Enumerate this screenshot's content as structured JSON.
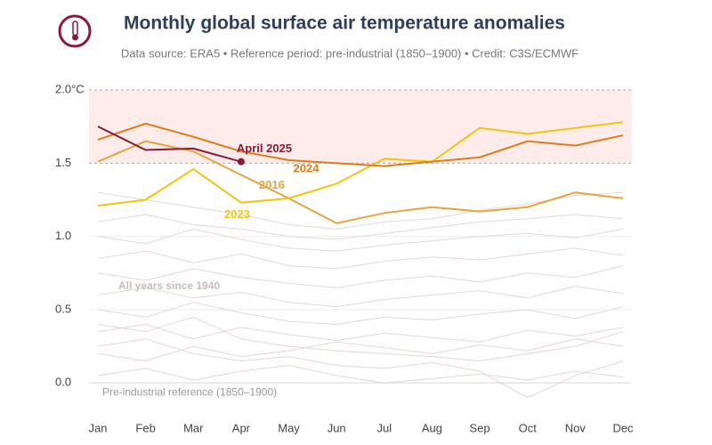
{
  "chart_data": {
    "type": "line",
    "title": "Monthly global surface air temperature anomalies",
    "subtitle": "Data source: ERA5 • Reference period: pre-industrial (1850–1900) • Credit: C3S/ECMWF",
    "categories": [
      "Jan",
      "Feb",
      "Mar",
      "Apr",
      "May",
      "Jun",
      "Jul",
      "Aug",
      "Sep",
      "Oct",
      "Nov",
      "Dec"
    ],
    "ylim": [
      -0.15,
      2.0
    ],
    "yticks": [
      {
        "value": 0.0,
        "label": "0.0"
      },
      0.5,
      {
        "value": 1.0,
        "label": "1.0"
      },
      1.5,
      {
        "value": 2.0,
        "label": "2.0°C"
      }
    ],
    "grid": true,
    "band": [
      1.5,
      2.0
    ],
    "band_color": "#fdecea",
    "reference": {
      "value": 0,
      "label": "Pre-industrial reference (1850–1900)"
    },
    "background": {
      "label": "All years since 1940",
      "color": "#e4d6d3",
      "series": [
        [
          0.05,
          0.1,
          0.02,
          0.08,
          0.12,
          0.05,
          0.0,
          0.03,
          0.06,
          0.02,
          0.08,
          0.04
        ],
        [
          0.2,
          0.15,
          0.25,
          0.18,
          0.22,
          0.28,
          0.24,
          0.2,
          0.26,
          0.22,
          0.3,
          0.25
        ],
        [
          0.35,
          0.4,
          0.3,
          0.38,
          0.33,
          0.29,
          0.34,
          0.31,
          0.28,
          0.36,
          0.32,
          0.38
        ],
        [
          0.5,
          0.45,
          0.55,
          0.48,
          0.42,
          0.4,
          0.45,
          0.43,
          0.47,
          0.5,
          0.44,
          0.52
        ],
        [
          0.6,
          0.65,
          0.58,
          0.62,
          0.55,
          0.52,
          0.57,
          0.6,
          0.63,
          0.58,
          0.66,
          0.61
        ],
        [
          0.75,
          0.7,
          0.78,
          0.72,
          0.68,
          0.65,
          0.7,
          0.73,
          0.69,
          0.75,
          0.72,
          0.8
        ],
        [
          0.85,
          0.9,
          0.82,
          0.88,
          0.8,
          0.78,
          0.83,
          0.86,
          0.84,
          0.88,
          0.92,
          0.87
        ],
        [
          1.0,
          0.95,
          1.05,
          0.98,
          0.92,
          0.9,
          0.94,
          0.97,
          1.0,
          1.02,
          0.99,
          1.05
        ],
        [
          1.1,
          1.15,
          1.08,
          1.05,
          1.0,
          0.98,
          1.02,
          1.06,
          1.1,
          1.12,
          1.15,
          1.12
        ],
        [
          1.3,
          1.25,
          1.2,
          1.15,
          1.08,
          1.05,
          1.1,
          1.12,
          1.18,
          1.22,
          1.28,
          1.3
        ],
        [
          0.25,
          0.3,
          0.2,
          0.15,
          0.18,
          0.12,
          0.1,
          0.14,
          0.08,
          -0.1,
          0.05,
          0.15
        ],
        [
          0.4,
          0.35,
          0.45,
          0.3,
          0.25,
          0.22,
          0.2,
          0.18,
          0.15,
          0.2,
          0.25,
          0.35
        ]
      ]
    },
    "series": [
      {
        "name": "2016",
        "label": "2016",
        "label_at": 3,
        "color": "#e8a33a",
        "values": [
          1.51,
          1.65,
          1.58,
          1.42,
          1.26,
          1.09,
          1.16,
          1.2,
          1.17,
          1.2,
          1.3,
          1.26
        ]
      },
      {
        "name": "2023",
        "label": "2023",
        "label_at": 3,
        "color": "#f2c40f",
        "values": [
          1.21,
          1.25,
          1.46,
          1.23,
          1.26,
          1.36,
          1.53,
          1.51,
          1.74,
          1.7,
          1.74,
          1.78
        ]
      },
      {
        "name": "2024",
        "label": "2024",
        "label_at": 4,
        "color": "#e07b1a",
        "values": [
          1.66,
          1.77,
          1.68,
          1.58,
          1.52,
          1.5,
          1.48,
          1.51,
          1.54,
          1.65,
          1.62,
          1.69
        ]
      },
      {
        "name": "2025",
        "label": "April 2025",
        "label_at": 3,
        "color": "#8b1a3a",
        "values": [
          1.75,
          1.59,
          1.6,
          1.51,
          null,
          null,
          null,
          null,
          null,
          null,
          null,
          null
        ]
      }
    ]
  }
}
